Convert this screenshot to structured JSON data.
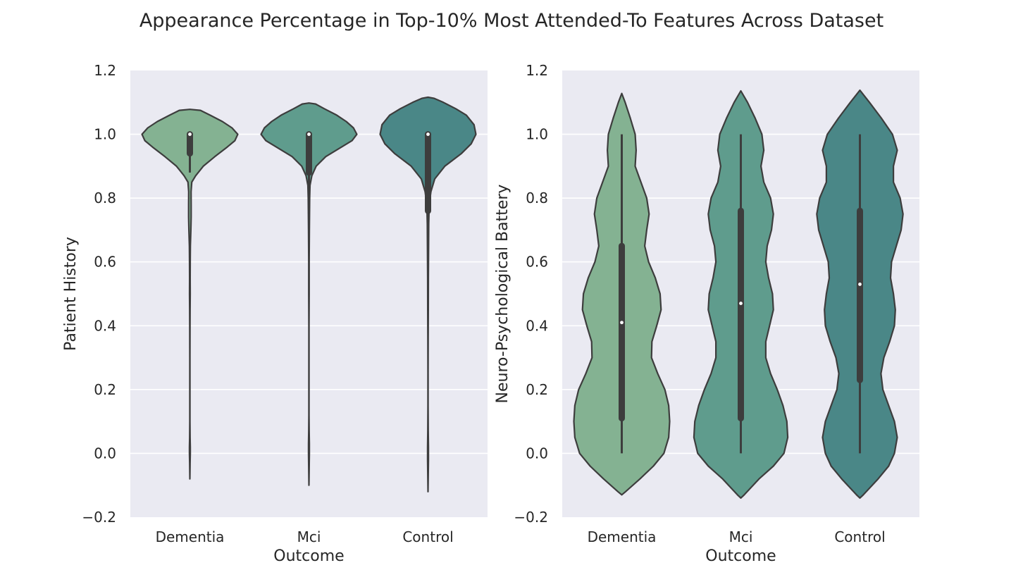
{
  "figure_title": "Appearance Percentage in Top-10% Most Attended-To Features Across Dataset",
  "colors": {
    "Dementia": "#84b292",
    "Mci": "#5f9c8d",
    "Control": "#4a8787",
    "axes_bg": "#eaeaf2",
    "grid": "#ffffff",
    "outline": "#3d3d3d"
  },
  "chart_data": [
    {
      "type": "violin",
      "title": "",
      "xlabel": "Outcome",
      "ylabel": "Patient History",
      "categories": [
        "Dementia",
        "Mci",
        "Control"
      ],
      "ylim": [
        -0.2,
        1.2
      ],
      "yticks": [
        "1.2",
        "1.0",
        "0.8",
        "0.6",
        "0.4",
        "0.2",
        "0.0",
        "−0.2"
      ],
      "grid": true,
      "series": [
        {
          "category": "Dementia",
          "median": 1.0,
          "q1": 0.94,
          "q3": 1.0,
          "whisker_low": 0.88,
          "whisker_high": 1.0,
          "density": [
            [
              -0.08,
              0.0
            ],
            [
              -0.03,
              0.004
            ],
            [
              0.0,
              0.009
            ],
            [
              0.02,
              0.009
            ],
            [
              0.05,
              0.004
            ],
            [
              0.1,
              0.002
            ],
            [
              0.2,
              0.002
            ],
            [
              0.3,
              0.002
            ],
            [
              0.4,
              0.003
            ],
            [
              0.45,
              0.005
            ],
            [
              0.5,
              0.007
            ],
            [
              0.55,
              0.006
            ],
            [
              0.6,
              0.007
            ],
            [
              0.65,
              0.01
            ],
            [
              0.7,
              0.02
            ],
            [
              0.74,
              0.026
            ],
            [
              0.78,
              0.027
            ],
            [
              0.82,
              0.025
            ],
            [
              0.85,
              0.04
            ],
            [
              0.87,
              0.12
            ],
            [
              0.9,
              0.28
            ],
            [
              0.93,
              0.52
            ],
            [
              0.96,
              0.78
            ],
            [
              0.98,
              0.94
            ],
            [
              1.0,
              1.0
            ],
            [
              1.02,
              0.88
            ],
            [
              1.04,
              0.68
            ],
            [
              1.06,
              0.42
            ],
            [
              1.075,
              0.22
            ],
            [
              1.078,
              0.0
            ]
          ]
        },
        {
          "category": "Mci",
          "median": 1.0,
          "q1": 0.88,
          "q3": 1.0,
          "whisker_low": 0.7,
          "whisker_high": 1.0,
          "density": [
            [
              -0.1,
              0.0
            ],
            [
              -0.05,
              0.005
            ],
            [
              0.0,
              0.009
            ],
            [
              0.03,
              0.009
            ],
            [
              0.07,
              0.005
            ],
            [
              0.12,
              0.002
            ],
            [
              0.2,
              0.002
            ],
            [
              0.3,
              0.002
            ],
            [
              0.4,
              0.002
            ],
            [
              0.5,
              0.004
            ],
            [
              0.6,
              0.005
            ],
            [
              0.7,
              0.009
            ],
            [
              0.75,
              0.012
            ],
            [
              0.8,
              0.014
            ],
            [
              0.84,
              0.022
            ],
            [
              0.87,
              0.06
            ],
            [
              0.9,
              0.15
            ],
            [
              0.93,
              0.35
            ],
            [
              0.96,
              0.68
            ],
            [
              0.98,
              0.9
            ],
            [
              1.0,
              1.0
            ],
            [
              1.02,
              0.93
            ],
            [
              1.04,
              0.78
            ],
            [
              1.06,
              0.58
            ],
            [
              1.08,
              0.32
            ],
            [
              1.095,
              0.14
            ],
            [
              1.098,
              0.0
            ]
          ]
        },
        {
          "category": "Control",
          "median": 1.0,
          "q1": 0.76,
          "q3": 1.0,
          "whisker_low": 0.45,
          "whisker_high": 1.0,
          "density": [
            [
              -0.12,
              0.0
            ],
            [
              -0.07,
              0.004
            ],
            [
              -0.02,
              0.009
            ],
            [
              0.02,
              0.009
            ],
            [
              0.07,
              0.005
            ],
            [
              0.15,
              0.002
            ],
            [
              0.25,
              0.002
            ],
            [
              0.35,
              0.003
            ],
            [
              0.45,
              0.006
            ],
            [
              0.55,
              0.008
            ],
            [
              0.65,
              0.012
            ],
            [
              0.72,
              0.015
            ],
            [
              0.78,
              0.025
            ],
            [
              0.82,
              0.06
            ],
            [
              0.86,
              0.14
            ],
            [
              0.9,
              0.35
            ],
            [
              0.94,
              0.7
            ],
            [
              0.97,
              0.9
            ],
            [
              1.0,
              1.0
            ],
            [
              1.03,
              0.96
            ],
            [
              1.06,
              0.8
            ],
            [
              1.08,
              0.58
            ],
            [
              1.1,
              0.32
            ],
            [
              1.113,
              0.12
            ],
            [
              1.116,
              0.0
            ]
          ]
        }
      ]
    },
    {
      "type": "violin",
      "title": "",
      "xlabel": "Outcome",
      "ylabel": "Neuro-Psychological Battery",
      "categories": [
        "Dementia",
        "Mci",
        "Control"
      ],
      "ylim": [
        -0.2,
        1.2
      ],
      "yticks": [
        "1.2",
        "1.0",
        "0.8",
        "0.6",
        "0.4",
        "0.2",
        "0.0",
        "−0.2"
      ],
      "grid": true,
      "series": [
        {
          "category": "Dementia",
          "median": 0.41,
          "q1": 0.11,
          "q3": 0.65,
          "whisker_low": 0.0,
          "whisker_high": 1.0,
          "density": [
            [
              -0.13,
              0.0
            ],
            [
              -0.12,
              0.08
            ],
            [
              -0.08,
              0.38
            ],
            [
              -0.04,
              0.66
            ],
            [
              0.0,
              0.88
            ],
            [
              0.05,
              0.98
            ],
            [
              0.1,
              1.0
            ],
            [
              0.15,
              0.98
            ],
            [
              0.2,
              0.9
            ],
            [
              0.25,
              0.75
            ],
            [
              0.3,
              0.62
            ],
            [
              0.35,
              0.63
            ],
            [
              0.4,
              0.73
            ],
            [
              0.45,
              0.82
            ],
            [
              0.5,
              0.8
            ],
            [
              0.55,
              0.7
            ],
            [
              0.6,
              0.56
            ],
            [
              0.65,
              0.48
            ],
            [
              0.7,
              0.52
            ],
            [
              0.75,
              0.57
            ],
            [
              0.8,
              0.52
            ],
            [
              0.85,
              0.4
            ],
            [
              0.9,
              0.28
            ],
            [
              0.95,
              0.3
            ],
            [
              1.0,
              0.28
            ],
            [
              1.05,
              0.18
            ],
            [
              1.1,
              0.07
            ],
            [
              1.128,
              0.0
            ]
          ]
        },
        {
          "category": "Mci",
          "median": 0.47,
          "q1": 0.11,
          "q3": 0.76,
          "whisker_low": 0.0,
          "whisker_high": 1.0,
          "density": [
            [
              -0.14,
              0.0
            ],
            [
              -0.13,
              0.07
            ],
            [
              -0.08,
              0.38
            ],
            [
              -0.04,
              0.68
            ],
            [
              0.0,
              0.9
            ],
            [
              0.05,
              0.98
            ],
            [
              0.1,
              0.96
            ],
            [
              0.15,
              0.88
            ],
            [
              0.2,
              0.76
            ],
            [
              0.25,
              0.62
            ],
            [
              0.3,
              0.52
            ],
            [
              0.35,
              0.52
            ],
            [
              0.4,
              0.6
            ],
            [
              0.45,
              0.68
            ],
            [
              0.5,
              0.66
            ],
            [
              0.55,
              0.58
            ],
            [
              0.6,
              0.52
            ],
            [
              0.65,
              0.55
            ],
            [
              0.7,
              0.64
            ],
            [
              0.75,
              0.68
            ],
            [
              0.8,
              0.62
            ],
            [
              0.85,
              0.48
            ],
            [
              0.9,
              0.42
            ],
            [
              0.95,
              0.48
            ],
            [
              1.0,
              0.44
            ],
            [
              1.05,
              0.3
            ],
            [
              1.1,
              0.14
            ],
            [
              1.136,
              0.0
            ]
          ]
        },
        {
          "category": "Control",
          "median": 0.53,
          "q1": 0.23,
          "q3": 0.76,
          "whisker_low": 0.0,
          "whisker_high": 1.0,
          "density": [
            [
              -0.14,
              0.0
            ],
            [
              -0.13,
              0.07
            ],
            [
              -0.08,
              0.38
            ],
            [
              -0.04,
              0.6
            ],
            [
              0.0,
              0.72
            ],
            [
              0.05,
              0.78
            ],
            [
              0.1,
              0.72
            ],
            [
              0.15,
              0.6
            ],
            [
              0.2,
              0.48
            ],
            [
              0.25,
              0.44
            ],
            [
              0.3,
              0.5
            ],
            [
              0.35,
              0.62
            ],
            [
              0.4,
              0.72
            ],
            [
              0.45,
              0.74
            ],
            [
              0.5,
              0.7
            ],
            [
              0.55,
              0.64
            ],
            [
              0.6,
              0.66
            ],
            [
              0.65,
              0.76
            ],
            [
              0.7,
              0.86
            ],
            [
              0.75,
              0.9
            ],
            [
              0.8,
              0.84
            ],
            [
              0.85,
              0.7
            ],
            [
              0.9,
              0.7
            ],
            [
              0.95,
              0.78
            ],
            [
              1.0,
              0.68
            ],
            [
              1.05,
              0.45
            ],
            [
              1.1,
              0.2
            ],
            [
              1.138,
              0.0
            ]
          ]
        }
      ]
    }
  ]
}
